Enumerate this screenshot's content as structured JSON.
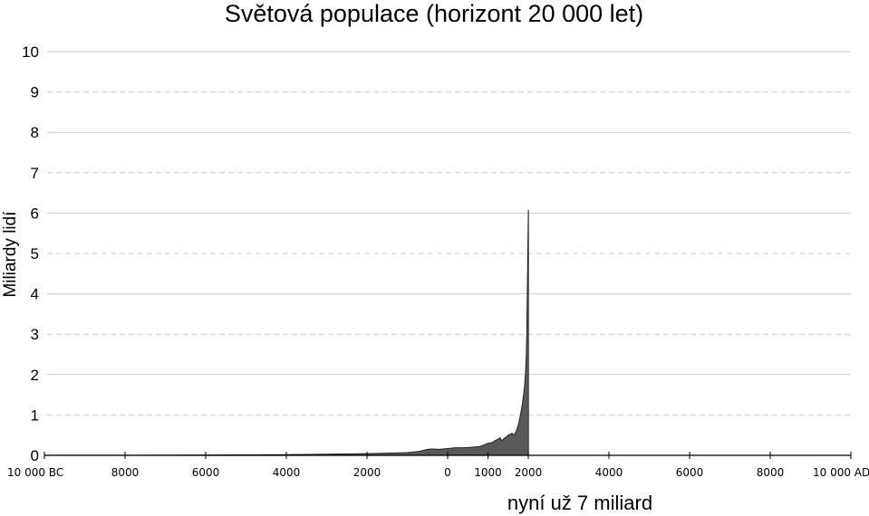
{
  "chart_data": {
    "type": "area",
    "title": "Světová populace (horizont 20 000 let)",
    "ylabel": "Miliardy lidí",
    "xlabel": "",
    "annotation": "nyní už 7 miliard",
    "xlim": [
      -10000,
      10000
    ],
    "ylim": [
      0,
      10
    ],
    "grid": true,
    "yticks": [
      {
        "value": 0,
        "label": "0"
      },
      {
        "value": 1,
        "label": "1"
      },
      {
        "value": 2,
        "label": "2"
      },
      {
        "value": 3,
        "label": "3"
      },
      {
        "value": 4,
        "label": "4"
      },
      {
        "value": 5,
        "label": "5"
      },
      {
        "value": 6,
        "label": "6"
      },
      {
        "value": 7,
        "label": "7"
      },
      {
        "value": 8,
        "label": "8"
      },
      {
        "value": 9,
        "label": "9"
      },
      {
        "value": 10,
        "label": "10"
      }
    ],
    "xticks": [
      {
        "value": -10000,
        "label": "10 000 BC"
      },
      {
        "value": -8000,
        "label": "8000"
      },
      {
        "value": -6000,
        "label": "6000"
      },
      {
        "value": -4000,
        "label": "4000"
      },
      {
        "value": -2000,
        "label": "2000"
      },
      {
        "value": 0,
        "label": "0"
      },
      {
        "value": 1000,
        "label": "1000"
      },
      {
        "value": 2000,
        "label": "2000"
      },
      {
        "value": 4000,
        "label": "4000"
      },
      {
        "value": 6000,
        "label": "6000"
      },
      {
        "value": 8000,
        "label": "8000"
      },
      {
        "value": 10000,
        "label": "10 000 AD"
      }
    ],
    "fill_color": "#595959",
    "grid_color": "#cccccc",
    "series": [
      {
        "x": [
          -10000,
          -8000,
          -6000,
          -4000,
          -3000,
          -2000,
          -1500,
          -1000,
          -700,
          -500,
          -400,
          -200,
          0,
          200,
          400,
          600,
          800,
          1000,
          1100,
          1200,
          1250,
          1300,
          1340,
          1400,
          1500,
          1600,
          1650,
          1700,
          1750,
          1800,
          1850,
          1900,
          1927,
          1950,
          1960,
          1974,
          1987,
          1999,
          2000,
          2005,
          2005
        ],
        "y": [
          0.004,
          0.006,
          0.01,
          0.018,
          0.03,
          0.045,
          0.055,
          0.07,
          0.1,
          0.15,
          0.16,
          0.15,
          0.17,
          0.19,
          0.19,
          0.2,
          0.22,
          0.3,
          0.32,
          0.38,
          0.4,
          0.44,
          0.36,
          0.42,
          0.5,
          0.55,
          0.5,
          0.6,
          0.75,
          0.98,
          1.26,
          1.65,
          2.0,
          2.5,
          3.0,
          4.0,
          5.0,
          6.0,
          6.07,
          6.07,
          0
        ]
      }
    ]
  }
}
